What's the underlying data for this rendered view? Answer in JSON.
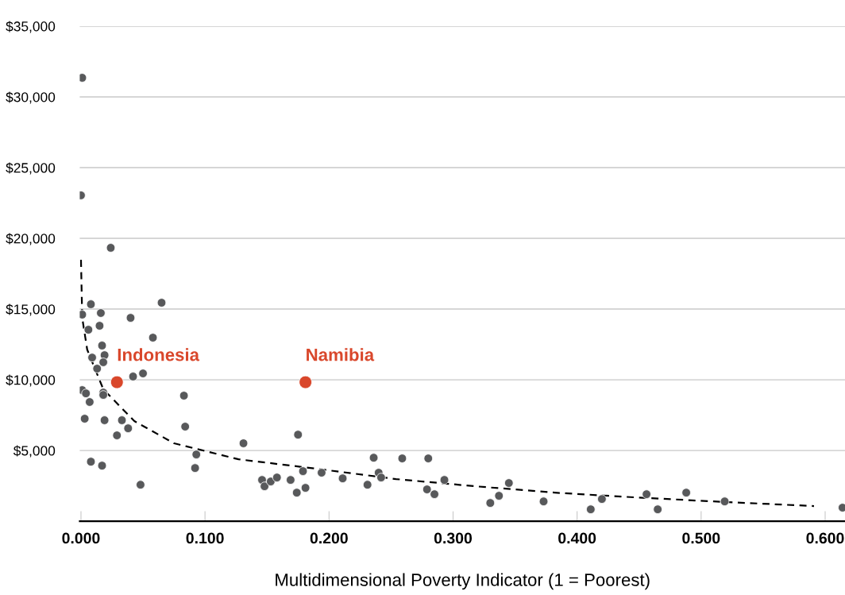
{
  "chart_data": {
    "type": "scatter",
    "xlabel": "Multidimensional Poverty Indicator (1 = Poorest)",
    "xlim": [
      -0.001,
      0.616
    ],
    "ylim": [
      0,
      35000
    ],
    "xticks": [
      {
        "value": 0,
        "label": "0.000"
      },
      {
        "value": 0.1,
        "label": "0.100"
      },
      {
        "value": 0.2,
        "label": "0.200"
      },
      {
        "value": 0.3,
        "label": "0.300"
      },
      {
        "value": 0.4,
        "label": "0.400"
      },
      {
        "value": 0.5,
        "label": "0.500"
      },
      {
        "value": 0.6,
        "label": "0.600"
      }
    ],
    "yticks": [
      {
        "value": 5000,
        "label": "$5,000"
      },
      {
        "value": 10000,
        "label": "$10,000"
      },
      {
        "value": 15000,
        "label": "$15,000"
      },
      {
        "value": 20000,
        "label": "$20,000"
      },
      {
        "value": 25000,
        "label": "$25,000"
      },
      {
        "value": 30000,
        "label": "$30,000"
      },
      {
        "value": 35000,
        "label": "$35,000"
      }
    ],
    "grid": "y",
    "marker": "circle",
    "series": [
      {
        "color": "#58595b",
        "x": [
          0.001,
          0.0,
          0.024,
          0.065,
          0.008,
          0.001,
          0.04,
          0.016,
          0.006,
          0.058,
          0.015,
          0.017,
          0.019,
          0.009,
          0.018,
          0.013,
          0.05,
          0.042,
          0.001,
          0.004,
          0.018,
          0.018,
          0.007,
          0.083,
          0.003,
          0.019,
          0.033,
          0.038,
          0.029,
          0.084,
          0.093,
          0.092,
          0.008,
          0.017,
          0.048,
          0.131,
          0.175,
          0.146,
          0.148,
          0.153,
          0.158,
          0.169,
          0.174,
          0.179,
          0.181,
          0.194,
          0.211,
          0.231,
          0.236,
          0.24,
          0.242,
          0.259,
          0.28,
          0.279,
          0.285,
          0.293,
          0.33,
          0.337,
          0.345,
          0.373,
          0.411,
          0.42,
          0.456,
          0.465,
          0.488,
          0.519,
          0.614
        ],
        "values": [
          31350,
          23040,
          19330,
          15450,
          15340,
          14610,
          14380,
          14720,
          13540,
          12980,
          13820,
          12420,
          11740,
          11570,
          11240,
          10790,
          10450,
          10230,
          9270,
          9040,
          9100,
          8930,
          8430,
          8880,
          7250,
          7140,
          7140,
          6570,
          6070,
          6690,
          4720,
          3760,
          4210,
          3930,
          2580,
          5510,
          6120,
          2920,
          2470,
          2810,
          3090,
          2920,
          2020,
          3540,
          2360,
          3430,
          3030,
          2580,
          4490,
          3430,
          3090,
          4440,
          4440,
          2250,
          1910,
          2920,
          1290,
          1800,
          2700,
          1400,
          840,
          1570,
          1910,
          840,
          2020,
          1400,
          960
        ]
      },
      {
        "color": "#d9472b",
        "x": [
          0.029,
          0.181
        ],
        "values": [
          9830,
          9830
        ]
      },
      {
        "type": "line",
        "color": "#000000",
        "line_style": "dashed",
        "marker": "none",
        "x": [
          0.0,
          0.001,
          0.005,
          0.018,
          0.043,
          0.075,
          0.127,
          0.19,
          0.254,
          0.318,
          0.382,
          0.446,
          0.51,
          0.591
        ],
        "values": [
          18480,
          14380,
          12140,
          9330,
          7080,
          5510,
          4380,
          3710,
          2980,
          2470,
          2020,
          1690,
          1400,
          1070
        ]
      }
    ],
    "annotations": [
      {
        "text": "Indonesia",
        "x": 0.029,
        "y": 9830
      },
      {
        "text": "Namibia",
        "x": 0.181,
        "y": 9830
      }
    ]
  }
}
